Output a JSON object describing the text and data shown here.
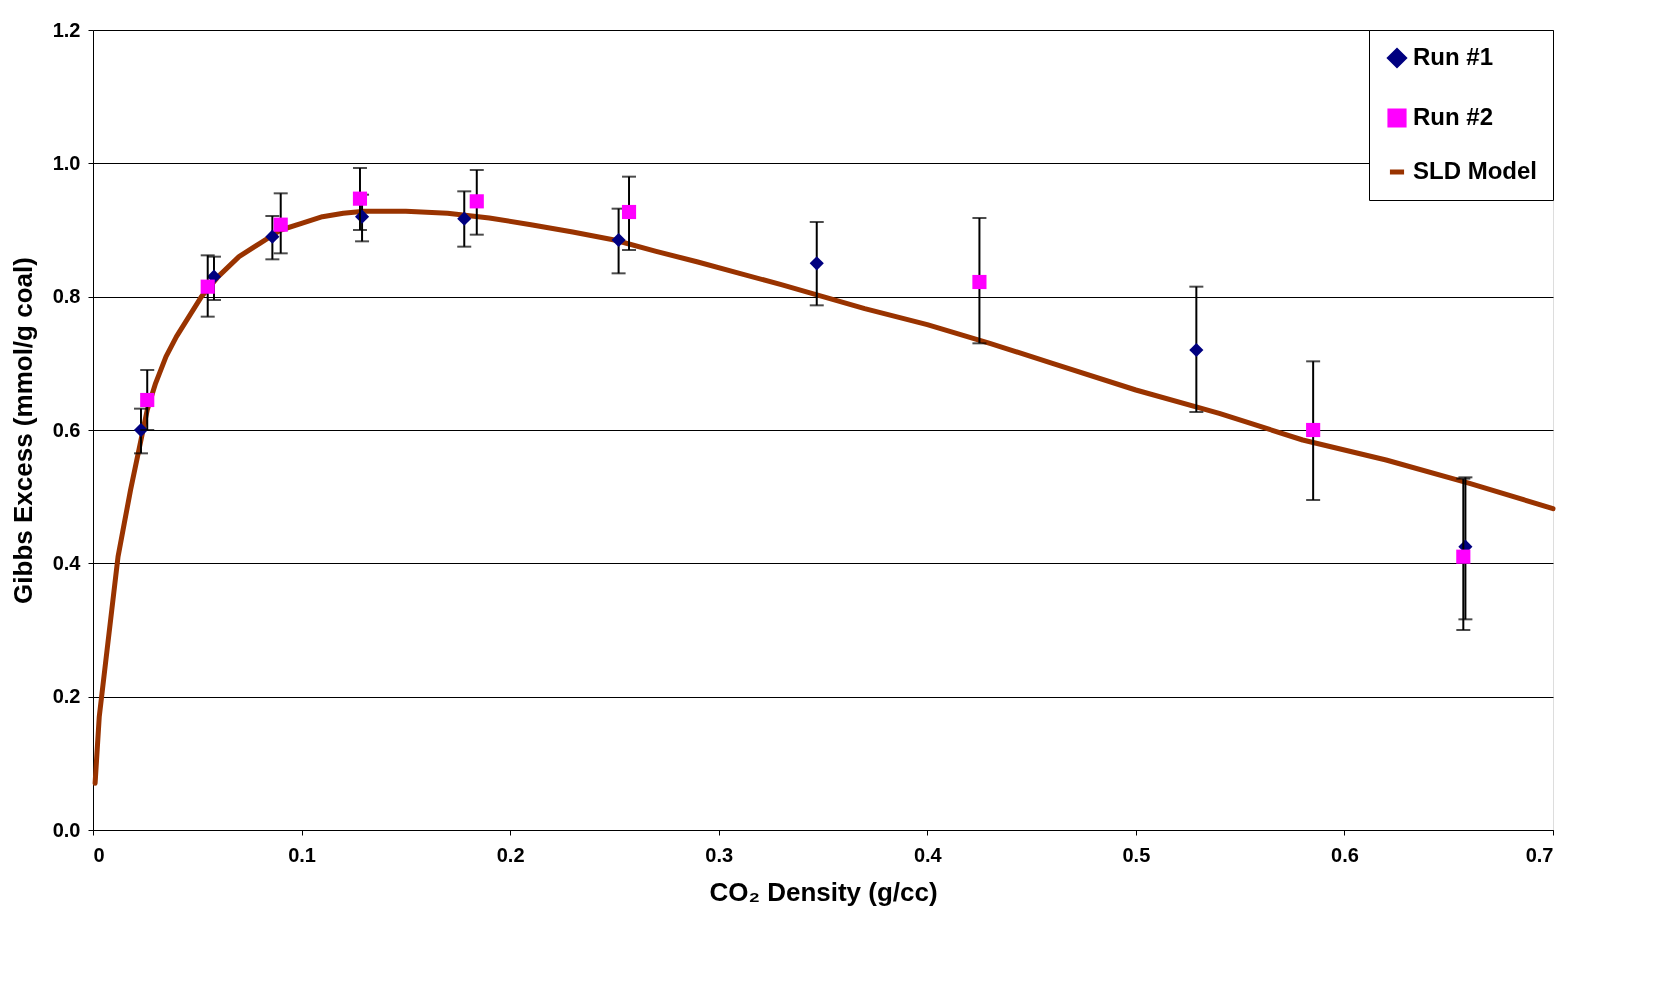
{
  "chart_data": {
    "type": "scatter",
    "xlabel": "CO₂ Density  (g/cc)",
    "ylabel": "Gibbs Excess (mmol/g coal)",
    "xlim": [
      0,
      0.7
    ],
    "xticks": [
      0,
      0.1,
      0.2,
      0.3,
      0.4,
      0.5,
      0.6,
      0.7
    ],
    "ylim": [
      0,
      1.2
    ],
    "yticks": [
      {
        "value": 0,
        "label": "0.0"
      },
      {
        "value": 0.2,
        "label": "0.2"
      },
      {
        "value": 0.4,
        "label": "0.4"
      },
      {
        "value": 0.6,
        "label": "0.6"
      },
      {
        "value": 0.8,
        "label": "0.8"
      },
      {
        "value": 1.0,
        "label": "1.0"
      },
      {
        "value": 1.2,
        "label": "1.2"
      }
    ],
    "grid": "y",
    "legend": "top right",
    "series": [
      {
        "name": "Run #1",
        "marker": "diamond",
        "color": "#000080",
        "x": [
          0.023,
          0.058,
          0.086,
          0.129,
          0.178,
          0.252,
          0.347,
          0.529,
          0.658
        ],
        "values": [
          0.6,
          0.83,
          0.89,
          0.92,
          0.917,
          0.885,
          0.85,
          0.72,
          0.425
        ],
        "errors": [
          [
            0.565,
            0.632
          ],
          [
            0.795,
            0.86
          ],
          [
            0.856,
            0.921
          ],
          [
            0.883,
            0.953
          ],
          [
            0.875,
            0.958
          ],
          [
            0.835,
            0.932
          ],
          [
            0.787,
            0.912
          ],
          [
            0.627,
            0.815
          ],
          [
            0.316,
            0.529
          ]
        ]
      },
      {
        "name": "Run #2",
        "marker": "square",
        "color": "#ff00ff",
        "x": [
          0.026,
          0.055,
          0.09,
          0.128,
          0.184,
          0.257,
          0.425,
          0.585,
          0.657
        ],
        "values": [
          0.645,
          0.815,
          0.908,
          0.947,
          0.943,
          0.927,
          0.822,
          0.6,
          0.41
        ],
        "errors": [
          [
            0.6,
            0.69
          ],
          [
            0.77,
            0.862
          ],
          [
            0.865,
            0.955
          ],
          [
            0.9,
            0.993
          ],
          [
            0.893,
            0.99
          ],
          [
            0.87,
            0.98
          ],
          [
            0.73,
            0.918
          ],
          [
            0.495,
            0.703
          ],
          [
            0.3,
            0.527
          ]
        ]
      },
      {
        "name": "SLD Model",
        "type": "line",
        "marker": "none",
        "color": "#993300",
        "x": [
          0.001,
          0.003,
          0.006,
          0.009,
          0.012,
          0.015,
          0.018,
          0.022,
          0.026,
          0.03,
          0.035,
          0.04,
          0.046,
          0.052,
          0.06,
          0.07,
          0.08,
          0.09,
          0.1,
          0.11,
          0.12,
          0.13,
          0.15,
          0.17,
          0.19,
          0.21,
          0.23,
          0.25,
          0.27,
          0.29,
          0.31,
          0.33,
          0.35,
          0.37,
          0.4,
          0.43,
          0.46,
          0.5,
          0.54,
          0.58,
          0.62,
          0.66,
          0.7
        ],
        "values": [
          0.07,
          0.17,
          0.25,
          0.33,
          0.41,
          0.46,
          0.51,
          0.57,
          0.63,
          0.67,
          0.71,
          0.74,
          0.77,
          0.8,
          0.83,
          0.86,
          0.88,
          0.9,
          0.91,
          0.92,
          0.925,
          0.928,
          0.928,
          0.925,
          0.918,
          0.908,
          0.897,
          0.885,
          0.868,
          0.852,
          0.835,
          0.818,
          0.8,
          0.782,
          0.758,
          0.73,
          0.7,
          0.66,
          0.625,
          0.585,
          0.555,
          0.52,
          0.482
        ]
      }
    ]
  }
}
